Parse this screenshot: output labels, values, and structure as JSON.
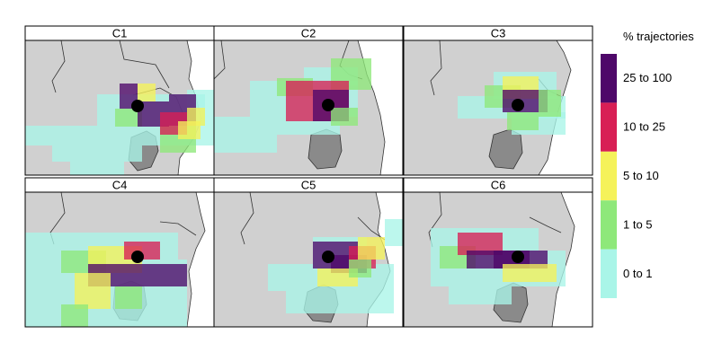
{
  "chart_data": {
    "type": "map",
    "panels": [
      "C1",
      "C2",
      "C3",
      "C4",
      "C5",
      "C6"
    ],
    "legend": {
      "title": "% trajectories",
      "entries": [
        {
          "label": "25 to 100",
          "color": "#4e0869"
        },
        {
          "label": "10 to 25",
          "color": "#d81f55"
        },
        {
          "label": "5 to 10",
          "color": "#f5f25a"
        },
        {
          "label": "1 to 5",
          "color": "#8ee87a"
        },
        {
          "label": "0 to 1",
          "color": "#a9f5e8"
        }
      ]
    },
    "colors": {
      "land": "#d0d0d0",
      "sea": "#ffffff",
      "lake": "#8a8a8a",
      "point": "#000000"
    }
  }
}
